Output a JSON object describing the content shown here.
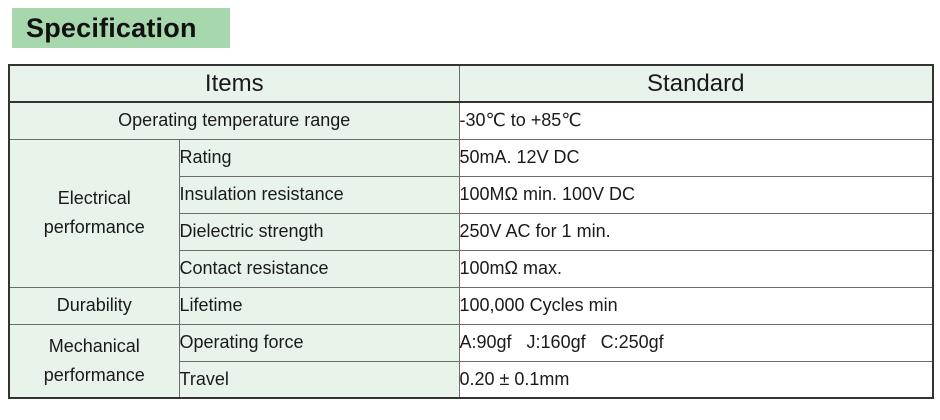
{
  "title": "Specification",
  "table": {
    "headers": {
      "items": "Items",
      "standard": "Standard"
    },
    "rows": {
      "operating_temperature": {
        "item": "Operating temperature range",
        "standard": "-30℃ to +85℃"
      },
      "electrical": {
        "group": "Electrical performance",
        "rating": {
          "item": "Rating",
          "standard": "50mA. 12V DC"
        },
        "insulation": {
          "item": "Insulation resistance",
          "standard": "100MΩ min. 100V DC"
        },
        "dielectric": {
          "item": "Dielectric strength",
          "standard": "250V AC for 1 min."
        },
        "contact": {
          "item": "Contact resistance",
          "standard": "100mΩ max."
        }
      },
      "durability": {
        "group": "Durability",
        "lifetime": {
          "item": "Lifetime",
          "standard": "100,000 Cycles min"
        }
      },
      "mechanical": {
        "group": "Mechanical performance",
        "operating_force": {
          "item": "Operating force",
          "standard": "A:90gf   J:160gf   C:250gf"
        },
        "travel": {
          "item": "Travel",
          "standard": "0.20 ± 0.1mm"
        }
      }
    }
  }
}
